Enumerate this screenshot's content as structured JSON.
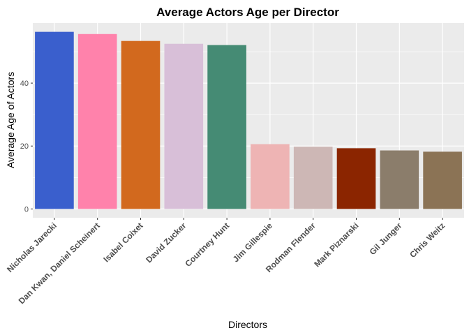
{
  "chart_data": {
    "type": "bar",
    "title": "Average Actors Age per Director",
    "xlabel": "Directors",
    "ylabel": "Average Age of Actors",
    "categories": [
      "Nicholas Jarecki",
      "Dan Kwan, Daniel Scheinert",
      "Isabel Coixet",
      "David Zucker",
      "Courtney Hunt",
      "Jim Gillespie",
      "Rodman Flender",
      "Mark Piznarski",
      "Gil Junger",
      "Chris Weitz"
    ],
    "values": [
      56.3,
      55.6,
      53.4,
      52.5,
      52.1,
      20.6,
      19.8,
      19.3,
      18.6,
      18.2
    ],
    "colors": [
      "#3A5FCD",
      "#FF82AB",
      "#D2691E",
      "#D8BFD8",
      "#458B74",
      "#EEB4B4",
      "#CDB7B5",
      "#8B2500",
      "#8B7D6B",
      "#8B7355"
    ],
    "yticks": [
      0,
      20,
      40
    ],
    "ylim": [
      -2.8,
      59.1
    ],
    "grid": true,
    "legend": "none",
    "panel_background": "#EBEBEB",
    "grid_color": "#FFFFFF"
  }
}
